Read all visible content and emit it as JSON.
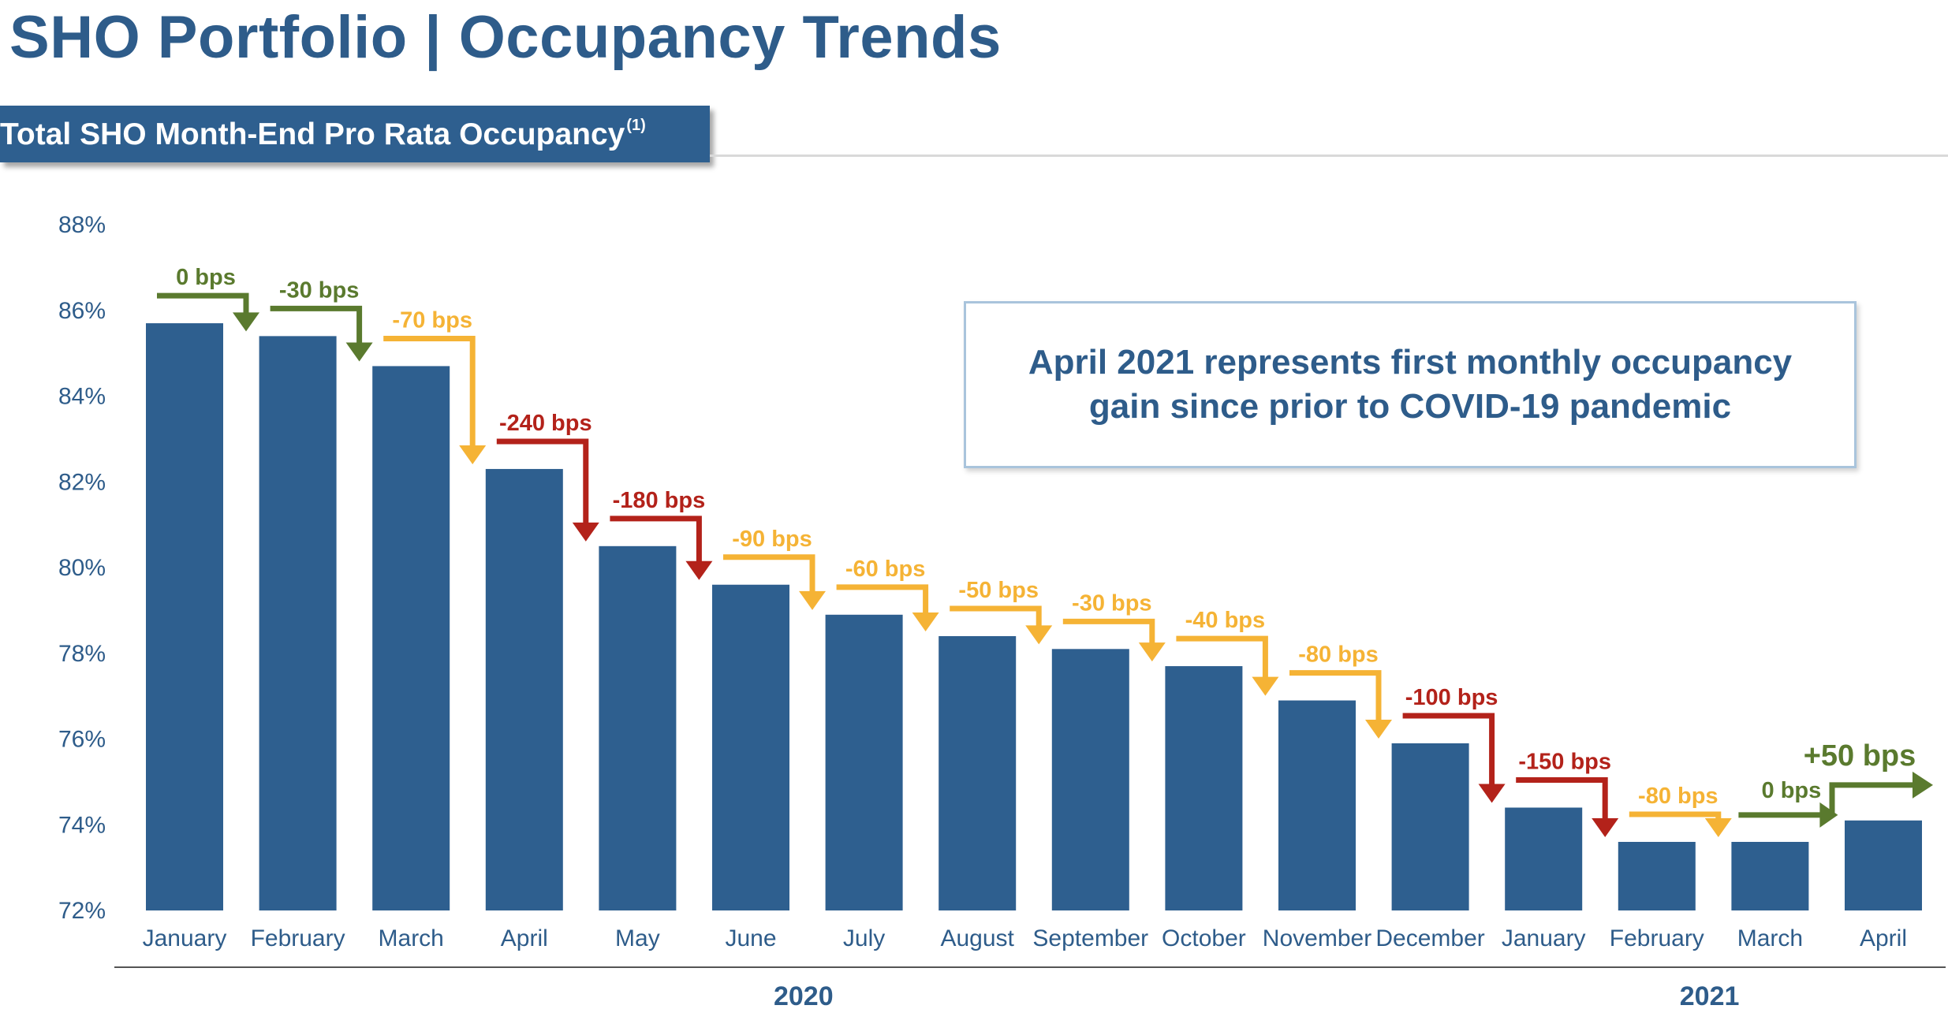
{
  "header": {
    "title": "SHO Portfolio | Occupancy Trends",
    "subtitle": "Total SHO Month-End Pro Rata Occupancy",
    "subtitle_footnote": "(1)"
  },
  "callout": {
    "line1": "April 2021 represents first monthly occupancy",
    "line2": "gain since prior to COVID-19 pandemic"
  },
  "colors": {
    "bar": "#2E5F8F",
    "text": "#2E5C8A",
    "green": "#5A7A2E",
    "yellow": "#F5B335",
    "red": "#B3221A"
  },
  "chart_data": {
    "type": "bar",
    "title": "Total SHO Month-End Pro Rata Occupancy",
    "ylim": [
      72,
      88
    ],
    "yticks": [
      "72%",
      "74%",
      "76%",
      "78%",
      "80%",
      "82%",
      "84%",
      "86%",
      "88%"
    ],
    "grid": false,
    "categories": [
      "January",
      "February",
      "March",
      "April",
      "May",
      "June",
      "July",
      "August",
      "September",
      "October",
      "November",
      "December",
      "January",
      "February",
      "March",
      "April"
    ],
    "values": [
      85.7,
      85.4,
      84.7,
      82.3,
      80.5,
      79.6,
      78.9,
      78.4,
      78.1,
      77.7,
      76.9,
      75.9,
      74.4,
      73.6,
      73.6,
      74.1
    ],
    "year_groups": [
      {
        "label": "2020",
        "start": 0,
        "end": 11
      },
      {
        "label": "2021",
        "start": 12,
        "end": 15
      }
    ],
    "changes": [
      {
        "label": "0 bps",
        "color": "green"
      },
      {
        "label": "-30 bps",
        "color": "green"
      },
      {
        "label": "-70 bps",
        "color": "yellow"
      },
      {
        "label": "-240 bps",
        "color": "red"
      },
      {
        "label": "-180 bps",
        "color": "red"
      },
      {
        "label": "-90 bps",
        "color": "yellow"
      },
      {
        "label": "-60 bps",
        "color": "yellow"
      },
      {
        "label": "-50 bps",
        "color": "yellow"
      },
      {
        "label": "-30 bps",
        "color": "yellow"
      },
      {
        "label": "-40 bps",
        "color": "yellow"
      },
      {
        "label": "-80 bps",
        "color": "yellow"
      },
      {
        "label": "-100 bps",
        "color": "red"
      },
      {
        "label": "-150 bps",
        "color": "red"
      },
      {
        "label": "-80 bps",
        "color": "yellow"
      },
      {
        "label": "0 bps",
        "color": "green"
      },
      {
        "label": "+50 bps",
        "color": "green"
      }
    ]
  }
}
